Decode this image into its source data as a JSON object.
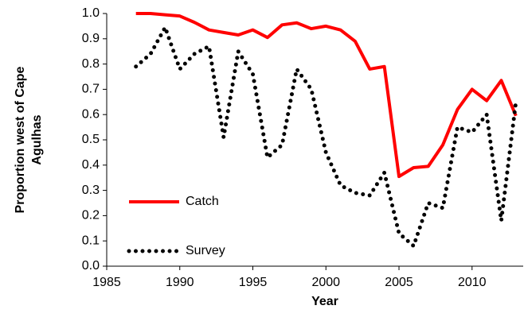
{
  "chart_data": {
    "type": "line",
    "xlabel": "Year",
    "ylabel": "Proportion west of Cape Agulhas",
    "x": [
      1987,
      1988,
      1989,
      1990,
      1991,
      1992,
      1993,
      1994,
      1995,
      1996,
      1997,
      1998,
      1999,
      2000,
      2001,
      2002,
      2003,
      2004,
      2005,
      2006,
      2007,
      2008,
      2009,
      2010,
      2011,
      2012,
      2013
    ],
    "series": [
      {
        "name": "Catch",
        "color": "#ff0000",
        "style": "solid",
        "values": [
          1.0,
          1.0,
          0.995,
          0.99,
          0.965,
          0.935,
          0.925,
          0.915,
          0.935,
          0.905,
          0.955,
          0.963,
          0.94,
          0.95,
          0.935,
          0.89,
          0.78,
          0.79,
          0.355,
          0.39,
          0.395,
          0.48,
          0.62,
          0.7,
          0.655,
          0.735,
          0.595
        ]
      },
      {
        "name": "Survey",
        "color": "#000000",
        "style": "dotted",
        "values": [
          0.79,
          0.84,
          0.945,
          0.78,
          0.84,
          0.87,
          0.51,
          0.85,
          0.76,
          0.43,
          0.48,
          0.78,
          0.7,
          0.45,
          0.32,
          0.29,
          0.28,
          0.37,
          0.13,
          0.08,
          0.25,
          0.23,
          0.55,
          0.53,
          0.6,
          0.18,
          0.65
        ]
      }
    ],
    "xlim": [
      1985,
      2013.5
    ],
    "xticks": [
      1985,
      1990,
      1995,
      2000,
      2005,
      2010
    ],
    "ylim": [
      0,
      1
    ],
    "yticks": [
      {
        "value": 0,
        "label": "0.0"
      },
      0.1,
      0.2,
      0.3,
      0.4,
      0.5,
      0.6,
      0.7,
      0.8,
      0.9,
      {
        "value": 1,
        "label": "1.0"
      }
    ],
    "legend": "lower left"
  }
}
